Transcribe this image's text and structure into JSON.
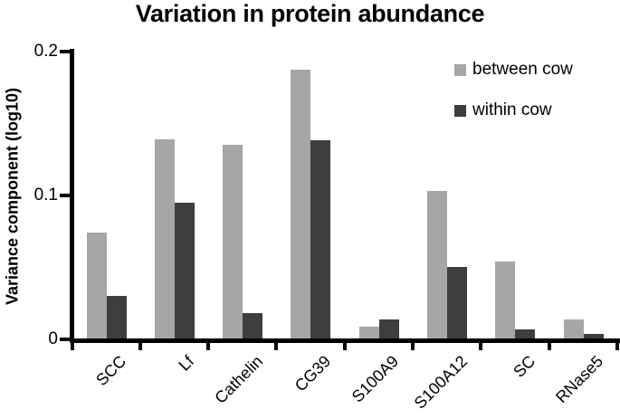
{
  "figure": {
    "title": "Variation in protein abundance",
    "y_axis_label": "Variance component (log10)"
  },
  "legend": {
    "items": [
      {
        "label": "between cow",
        "color": "#a6a6a6"
      },
      {
        "label": "within cow",
        "color": "#3e3e3e"
      }
    ]
  },
  "chart_data": {
    "type": "bar",
    "title": "Variation in protein abundance",
    "xlabel": "",
    "ylabel": "Variance component (log10)",
    "ylim": [
      0,
      0.2
    ],
    "yticks": [
      0,
      0.1,
      0.2
    ],
    "ytick_labels": [
      "0",
      "0.1",
      "0.2"
    ],
    "categories": [
      "SCC",
      "Lf",
      "Cathelin",
      "CG39",
      "S100A9",
      "S100A12",
      "SC",
      "RNase5"
    ],
    "series": [
      {
        "name": "between cow",
        "color": "#a6a6a6",
        "values": [
          0.074,
          0.139,
          0.135,
          0.187,
          0.009,
          0.103,
          0.054,
          0.014
        ]
      },
      {
        "name": "within cow",
        "color": "#3e3e3e",
        "values": [
          0.03,
          0.095,
          0.018,
          0.138,
          0.014,
          0.05,
          0.007,
          0.004
        ]
      }
    ],
    "legend_position": "upper right",
    "grid": false,
    "axis_color": "#000000",
    "background": "#ffffff"
  }
}
